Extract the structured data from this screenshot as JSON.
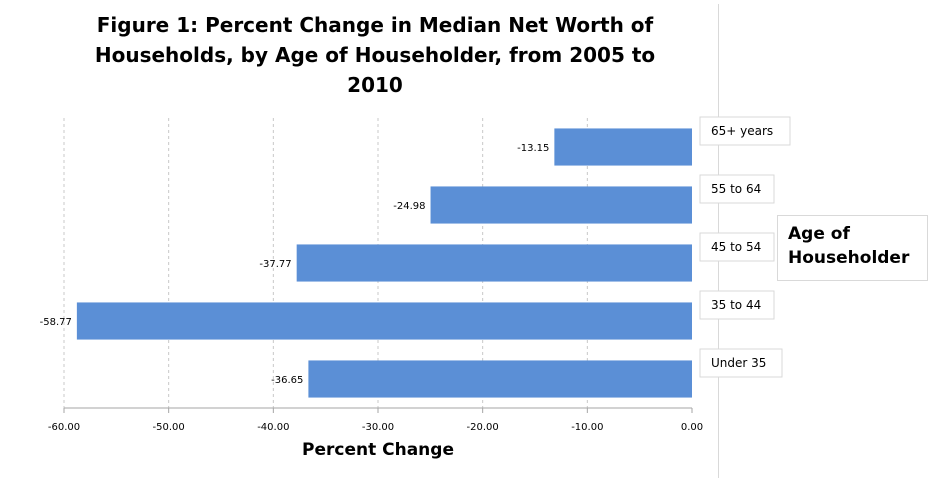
{
  "chart_data": {
    "type": "bar",
    "orientation": "horizontal",
    "title": "Figure 1: Percent Change in Median Net Worth of Households, by Age of Householder, from 2005 to 2010",
    "xlabel": "Percent Change",
    "ylabel": "Age of Householder",
    "categories": [
      "65+ years",
      "55 to 64",
      "45 to 54",
      "35 to 44",
      "Under 35"
    ],
    "values": [
      -13.15,
      -24.98,
      -37.77,
      -58.77,
      -36.65
    ],
    "value_labels": [
      "-13.15",
      "-24.98",
      "-37.77",
      "-58.77",
      "-36.65"
    ],
    "xlim": [
      -60,
      0
    ],
    "xticks": [
      "-60.00",
      "-50.00",
      "-40.00",
      "-30.00",
      "-20.00",
      "-10.00",
      "0.00"
    ],
    "grid": "vertical-dashed",
    "bar_color": "#5b8fd6",
    "legend": "none"
  }
}
